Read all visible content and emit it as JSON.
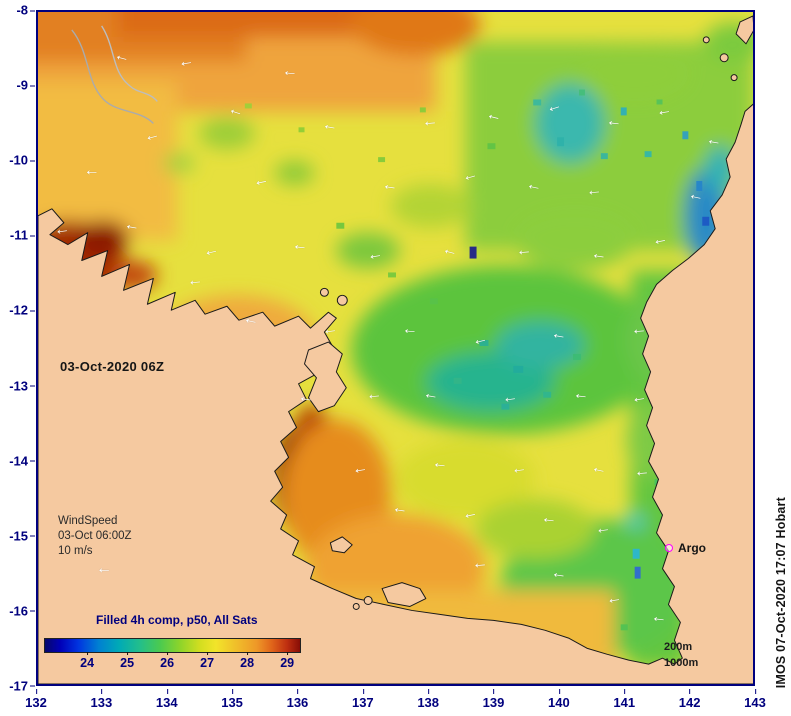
{
  "map": {
    "date_label": "03-Oct-2020 06Z",
    "wind_legend": {
      "title": "WindSpeed",
      "time": "03-Oct 06:00Z",
      "scale": "10 m/s"
    },
    "argo_label": "Argo",
    "colorbar": {
      "title": "Filled 4h comp, p50, All Sats",
      "ticks": [
        "24",
        "25",
        "26",
        "27",
        "28",
        "29"
      ]
    },
    "contour_labels": [
      "200m",
      "1000m"
    ],
    "credit": "IMOS 07-Oct-2020 17:07 Hobart",
    "x_ticks": [
      "132",
      "133",
      "134",
      "135",
      "136",
      "137",
      "138",
      "139",
      "140",
      "141",
      "142",
      "143"
    ],
    "y_ticks": [
      "-8",
      "-9",
      "-10",
      "-11",
      "-12",
      "-13",
      "-14",
      "-15",
      "-16",
      "-17"
    ]
  },
  "icons": {
    "wind_arrow": "←",
    "argo_marker": "magenta-ring"
  },
  "colors": {
    "frame": "#00007E",
    "axis_text": "#00007E",
    "land": "#F5C9A0",
    "argo": "#FF00FF",
    "arrow": "#FFFFFF"
  },
  "wind_arrows": [
    [
      11.7,
      6.7,
      15
    ],
    [
      20.7,
      7.4,
      -10
    ],
    [
      35.3,
      8.9,
      5
    ],
    [
      27.7,
      14.8,
      18
    ],
    [
      15.9,
      18.5,
      -15
    ],
    [
      40.9,
      17.0,
      10
    ],
    [
      54.8,
      16.3,
      -5
    ],
    [
      63.8,
      15.5,
      14
    ],
    [
      72.2,
      14.1,
      -18
    ],
    [
      80.5,
      16.3,
      6
    ],
    [
      87.5,
      14.8,
      -10
    ],
    [
      94.6,
      19.2,
      10
    ],
    [
      7.5,
      23.7,
      0
    ],
    [
      31.2,
      25.1,
      -12
    ],
    [
      49.2,
      25.9,
      8
    ],
    [
      60.4,
      24.4,
      -16
    ],
    [
      69.4,
      25.9,
      12
    ],
    [
      77.7,
      26.6,
      -6
    ],
    [
      92.0,
      27.4,
      12
    ],
    [
      3.3,
      32.5,
      -8
    ],
    [
      13.1,
      31.8,
      10
    ],
    [
      24.2,
      35.5,
      -14
    ],
    [
      36.7,
      34.8,
      6
    ],
    [
      47.1,
      36.2,
      -10
    ],
    [
      57.6,
      35.5,
      15
    ],
    [
      68.0,
      35.5,
      -5
    ],
    [
      78.4,
      36.2,
      8
    ],
    [
      87.0,
      34.0,
      -12
    ],
    [
      22.0,
      40.0,
      -6
    ],
    [
      29.8,
      45.9,
      12
    ],
    [
      40.9,
      47.3,
      -8
    ],
    [
      52.0,
      47.3,
      5
    ],
    [
      61.8,
      48.8,
      -14
    ],
    [
      72.9,
      48.1,
      10
    ],
    [
      84.0,
      47.3,
      -5
    ],
    [
      37.5,
      57.5,
      8
    ],
    [
      47.0,
      57.0,
      -6
    ],
    [
      55.0,
      57.0,
      10
    ],
    [
      66.0,
      57.5,
      -8
    ],
    [
      76.0,
      57.0,
      6
    ],
    [
      84.0,
      57.5,
      -10
    ],
    [
      45.1,
      68.0,
      -10
    ],
    [
      56.2,
      67.3,
      6
    ],
    [
      67.3,
      68.0,
      -8
    ],
    [
      78.4,
      68.0,
      12
    ],
    [
      84.5,
      68.5,
      -5
    ],
    [
      50.6,
      74.0,
      8
    ],
    [
      60.4,
      74.7,
      -12
    ],
    [
      71.5,
      75.4,
      6
    ],
    [
      79.0,
      77.0,
      -8
    ],
    [
      61.8,
      82.1,
      -5
    ],
    [
      72.9,
      83.6,
      8
    ],
    [
      80.5,
      87.3,
      -10
    ],
    [
      86.8,
      90.2,
      6
    ]
  ]
}
